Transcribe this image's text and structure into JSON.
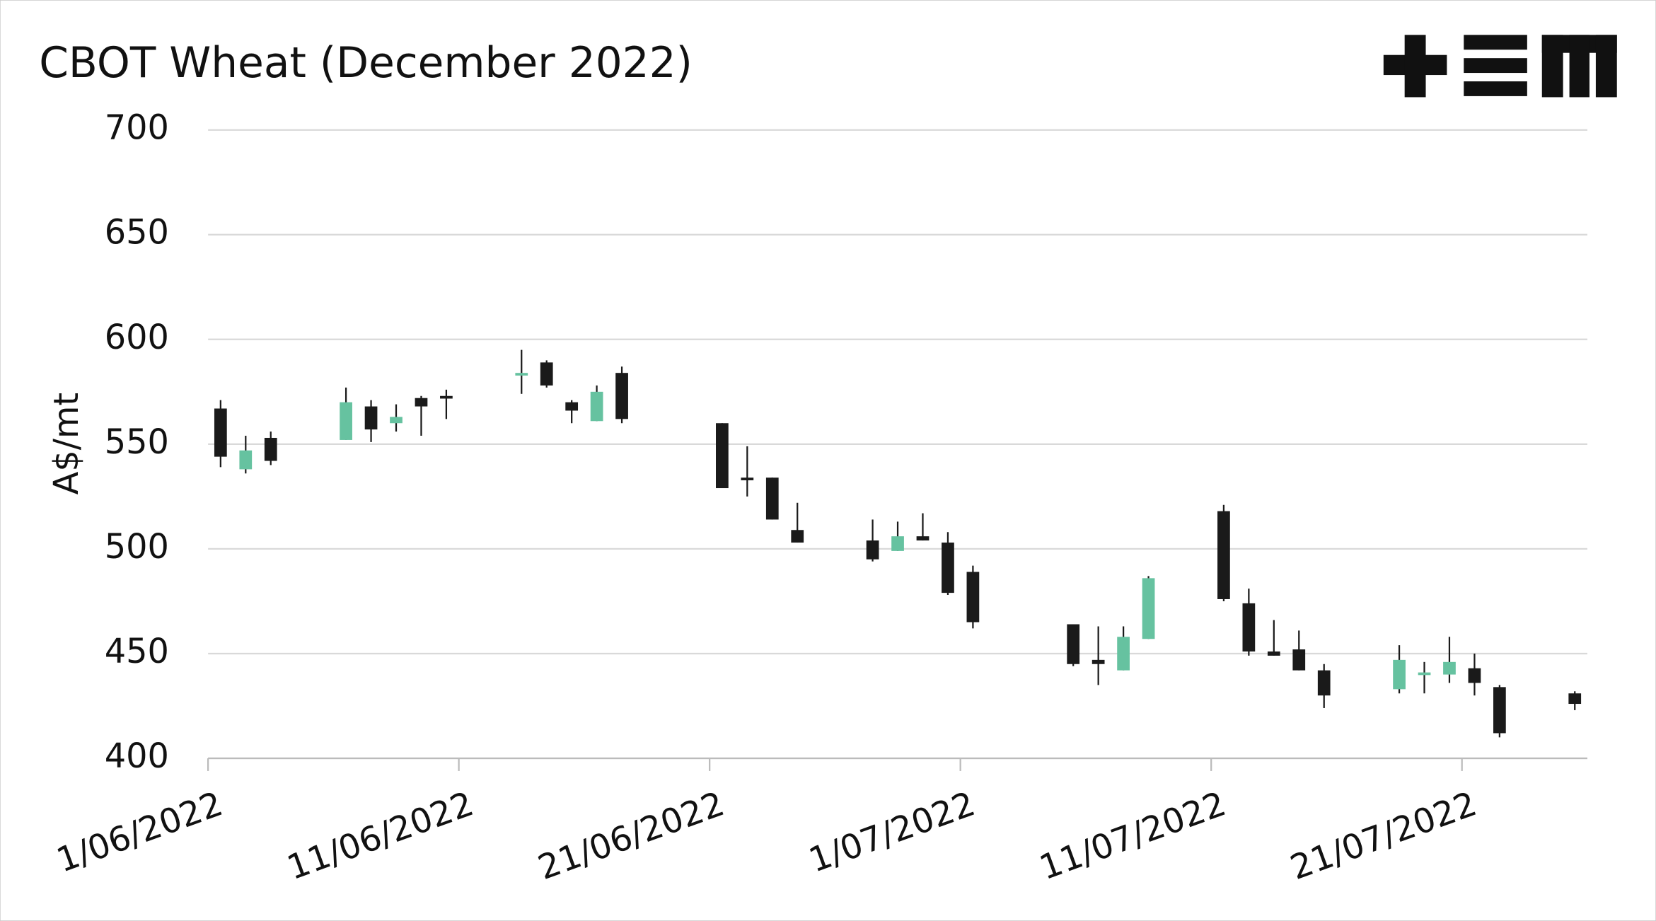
{
  "chart_data": {
    "type": "candlestick",
    "title": "CBOT Wheat (December 2022)",
    "y_label": "A$/mt",
    "x": [
      "2022-06-01",
      "2022-06-02",
      "2022-06-03",
      "2022-06-06",
      "2022-06-07",
      "2022-06-08",
      "2022-06-09",
      "2022-06-10",
      "2022-06-13",
      "2022-06-14",
      "2022-06-15",
      "2022-06-16",
      "2022-06-17",
      "2022-06-21",
      "2022-06-22",
      "2022-06-23",
      "2022-06-24",
      "2022-06-27",
      "2022-06-28",
      "2022-06-29",
      "2022-06-30",
      "2022-07-01",
      "2022-07-05",
      "2022-07-06",
      "2022-07-07",
      "2022-07-08",
      "2022-07-11",
      "2022-07-12",
      "2022-07-13",
      "2022-07-14",
      "2022-07-15",
      "2022-07-18",
      "2022-07-19",
      "2022-07-20",
      "2022-07-21",
      "2022-07-22",
      "2022-07-25"
    ],
    "open": [
      567,
      538,
      553,
      552,
      568,
      560,
      572,
      573,
      583,
      589,
      570,
      561,
      584,
      560,
      534,
      534,
      509,
      504,
      499,
      506,
      503,
      489,
      464,
      447,
      442,
      457,
      518,
      474,
      451,
      452,
      442,
      433,
      440,
      440,
      443,
      434,
      431
    ],
    "high": [
      571,
      554,
      556,
      577,
      571,
      569,
      573,
      576,
      595,
      590,
      571,
      578,
      587,
      560,
      549,
      534,
      522,
      514,
      513,
      517,
      508,
      492,
      464,
      463,
      463,
      487,
      521,
      481,
      466,
      461,
      445,
      454,
      446,
      458,
      450,
      435,
      432
    ],
    "low": [
      539,
      536,
      540,
      552,
      551,
      556,
      554,
      562,
      574,
      577,
      560,
      561,
      560,
      529,
      525,
      514,
      503,
      494,
      499,
      504,
      478,
      462,
      444,
      435,
      442,
      457,
      475,
      449,
      449,
      442,
      424,
      431,
      431,
      436,
      430,
      410,
      423
    ],
    "close": [
      544,
      547,
      542,
      570,
      557,
      563,
      568,
      572,
      584,
      578,
      566,
      575,
      562,
      529,
      533,
      514,
      503,
      495,
      506,
      504,
      479,
      465,
      445,
      445,
      458,
      486,
      476,
      451,
      449,
      442,
      430,
      447,
      441,
      446,
      436,
      412,
      426
    ],
    "up_color": "#66c2a0",
    "down_color": "#1a1a1a",
    "xlim": [
      "2022-06-01",
      "2022-07-26"
    ],
    "xticks": [
      {
        "value": "2022-06-01",
        "label": "1/06/2022"
      },
      {
        "value": "2022-06-11",
        "label": "11/06/2022"
      },
      {
        "value": "2022-06-21",
        "label": "21/06/2022"
      },
      {
        "value": "2022-07-01",
        "label": "1/07/2022"
      },
      {
        "value": "2022-07-11",
        "label": "11/07/2022"
      },
      {
        "value": "2022-07-21",
        "label": "21/07/2022"
      }
    ],
    "ylim": [
      400,
      700
    ],
    "yticks": [
      400,
      450,
      500,
      550,
      600,
      650,
      700
    ],
    "grid": true
  }
}
